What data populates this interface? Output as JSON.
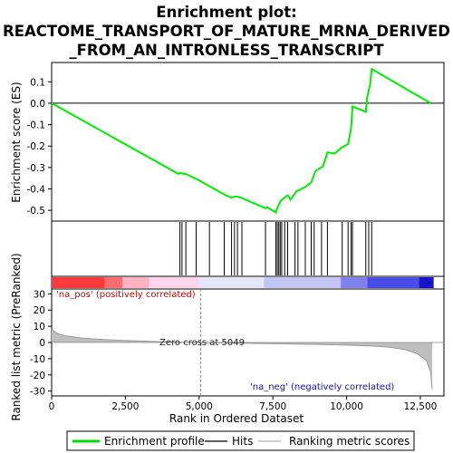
{
  "chart_data": {
    "type": "line",
    "title_lines": [
      "Enrichment plot:",
      "REACTOME_TRANSPORT_OF_MATURE_MRNA_DERIVED",
      "_FROM_AN_INTRONLESS_TRANSCRIPT"
    ],
    "top_panel": {
      "ylabel": "Enrichment score (ES)",
      "ylim": [
        -0.55,
        0.19
      ],
      "yticks": [
        0.1,
        0.0,
        -0.1,
        -0.2,
        -0.3,
        -0.4,
        -0.5
      ],
      "ytick_labels": [
        "0.1",
        "0.0",
        "-0.1",
        "-0.2",
        "-0.3",
        "-0.4",
        "-0.5"
      ],
      "es_curve": {
        "x": [
          0,
          4300,
          4350,
          4500,
          4550,
          5000,
          5900,
          6100,
          6250,
          6400,
          7250,
          7300,
          7600,
          7650,
          7700,
          7750,
          7800,
          7900,
          8000,
          8100,
          8300,
          8400,
          8600,
          8800,
          8900,
          8950,
          9200,
          9350,
          9600,
          9800,
          10050,
          10150,
          10200,
          10650,
          10700,
          10800,
          10850,
          12850
        ],
        "y": [
          0.0,
          -0.33,
          -0.325,
          -0.33,
          -0.33,
          -0.36,
          -0.43,
          -0.44,
          -0.435,
          -0.44,
          -0.49,
          -0.485,
          -0.51,
          -0.49,
          -0.475,
          -0.46,
          -0.45,
          -0.44,
          -0.43,
          -0.45,
          -0.41,
          -0.405,
          -0.39,
          -0.37,
          -0.33,
          -0.315,
          -0.295,
          -0.23,
          -0.235,
          -0.21,
          -0.19,
          -0.12,
          -0.015,
          -0.04,
          0.03,
          0.09,
          0.16,
          0.0
        ]
      }
    },
    "hits": [
      4350,
      4420,
      4550,
      4900,
      5350,
      5850,
      6100,
      6200,
      6300,
      6450,
      7250,
      7600,
      7650,
      7700,
      7750,
      7800,
      7900,
      8000,
      8250,
      8350,
      8600,
      8800,
      8900,
      9150,
      9350,
      9850,
      10050,
      10150,
      10200,
      10650,
      10750,
      10850
    ],
    "bottom_panel": {
      "ylabel": "Ranked list metric (PreRanked)",
      "ylim": [
        -33,
        33
      ],
      "yticks": [
        30,
        20,
        10,
        0,
        -10,
        -20,
        -30
      ],
      "ytick_labels": [
        "30",
        "20",
        "10",
        "0",
        "-10",
        "-20",
        "-30"
      ],
      "metric_curve": {
        "x": [
          0,
          200,
          500,
          1000,
          1500,
          2000,
          2500,
          3000,
          3500,
          4000,
          4500,
          5049,
          6000,
          7000,
          8000,
          9000,
          10000,
          11000,
          11500,
          12000,
          12400,
          12700,
          12850,
          12900
        ],
        "y": [
          8,
          5.5,
          4,
          2.8,
          2.1,
          1.6,
          1.2,
          0.9,
          0.6,
          0.35,
          0.15,
          0,
          -0.3,
          -0.6,
          -0.9,
          -1.2,
          -1.6,
          -2.3,
          -3,
          -4.5,
          -7,
          -11,
          -18,
          -29
        ]
      },
      "zero_cross_x": 5049,
      "zero_cross_label": "Zero cross at 5049",
      "pos_label": "'na_pos' (positively correlated)",
      "neg_label": "'na_neg' (negatively correlated)"
    },
    "xlabel": "Rank in Ordered Dataset",
    "xlim": [
      0,
      13300
    ],
    "xticks": [
      0,
      2500,
      5000,
      7500,
      10000,
      12500
    ],
    "xtick_labels": [
      "0",
      "2,500",
      "5,000",
      "7,500",
      "10,000",
      "12,500"
    ],
    "heat_bar": {
      "segments": [
        {
          "end": 1800,
          "color": "#ff3a3a"
        },
        {
          "end": 2400,
          "color": "#ff6e6e"
        },
        {
          "end": 3300,
          "color": "#ffb2c4"
        },
        {
          "end": 5000,
          "color": "#ffd6ec"
        },
        {
          "end": 7200,
          "color": "#e6e6fa"
        },
        {
          "end": 9800,
          "color": "#c4c4f4"
        },
        {
          "end": 10700,
          "color": "#8080ee"
        },
        {
          "end": 12450,
          "color": "#4a4ae6"
        },
        {
          "end": 12950,
          "color": "#1414c8"
        }
      ]
    },
    "legend": {
      "items": [
        {
          "label": "Enrichment profile",
          "color": "#00dd00"
        },
        {
          "label": "Hits",
          "color": "#000000"
        },
        {
          "label": "Ranking metric scores",
          "color": "#b0b0b0"
        }
      ]
    },
    "colors": {
      "es_line": "#00ee00",
      "hit": "#000000",
      "metric_fill": "#bfbfbf",
      "metric_line": "#9a9a9a",
      "zero_cross": "#888888"
    }
  }
}
